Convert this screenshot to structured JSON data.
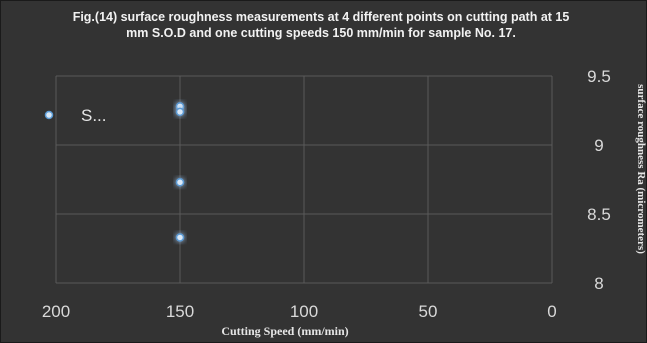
{
  "chart_data": {
    "type": "line",
    "title": "Fig.(14) surface roughness measurements at 4 different points on cutting path at 15 mm S.O.D and one cutting speeds 150 mm/min for sample No. 17.",
    "xlabel": "Cutting Speed (mm/min)",
    "ylabel": "surface roughness Ra (micrometers)",
    "xlim": [
      200,
      0
    ],
    "ylim": [
      8,
      9.5
    ],
    "x_ticks": [
      "200",
      "150",
      "100",
      "50",
      "0"
    ],
    "y_ticks": [
      "8",
      "8.5",
      "9",
      "9.5"
    ],
    "x_reversed": true,
    "y_axis_side": "right",
    "grid": true,
    "legend_position": "left",
    "series": [
      {
        "name": "S...",
        "color": "#5b9bd5",
        "points": [
          {
            "x": 150,
            "y": 9.28
          },
          {
            "x": 150,
            "y": 9.24
          },
          {
            "x": 150,
            "y": 8.73
          },
          {
            "x": 150,
            "y": 8.33
          }
        ]
      }
    ]
  }
}
